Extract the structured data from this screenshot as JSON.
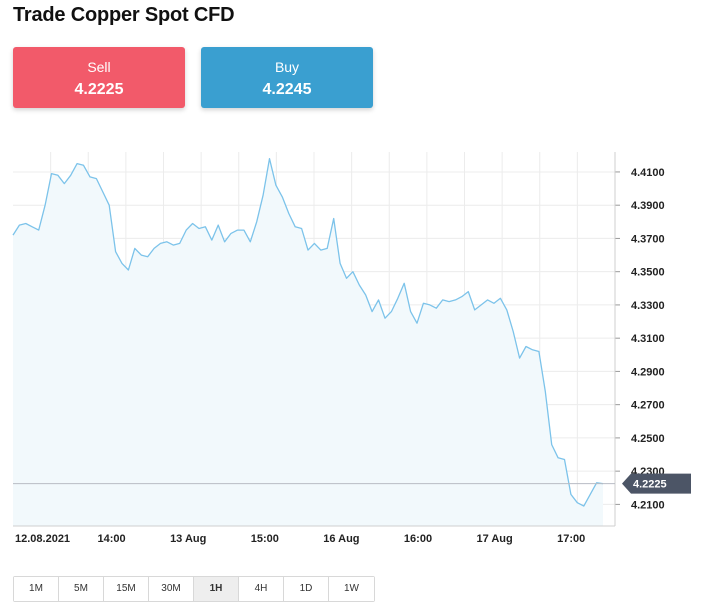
{
  "title": "Trade Copper Spot CFD",
  "sell": {
    "label": "Sell",
    "price": "4.2225",
    "color": "#f25a6a"
  },
  "buy": {
    "label": "Buy",
    "price": "4.2245",
    "color": "#3a9fd0"
  },
  "timeframes": [
    "1M",
    "5M",
    "15M",
    "30M",
    "1H",
    "4H",
    "1D",
    "1W"
  ],
  "active_timeframe": "1H",
  "chart_data": {
    "type": "area",
    "current_price_label": "4.2225",
    "x_tick_labels": [
      "12.08.2021",
      "14:00",
      "13 Aug",
      "15:00",
      "16 Aug",
      "16:00",
      "17 Aug",
      "17:00"
    ],
    "y_tick_labels": [
      "4.4100",
      "4.3900",
      "4.3700",
      "4.3500",
      "4.3300",
      "4.3100",
      "4.2900",
      "4.2700",
      "4.2500",
      "4.2300",
      "4.2100"
    ],
    "ylim": [
      4.197,
      4.422
    ],
    "grid": true,
    "line_color": "#7cc3ea",
    "fill_color": "#f2f9fc",
    "values": [
      4.372,
      4.378,
      4.379,
      4.377,
      4.375,
      4.39,
      4.409,
      4.408,
      4.403,
      4.408,
      4.415,
      4.414,
      4.407,
      4.406,
      4.398,
      4.39,
      4.362,
      4.355,
      4.351,
      4.364,
      4.36,
      4.359,
      4.364,
      4.367,
      4.368,
      4.366,
      4.367,
      4.375,
      4.379,
      4.376,
      4.377,
      4.369,
      4.378,
      4.368,
      4.373,
      4.375,
      4.375,
      4.368,
      4.38,
      4.396,
      4.418,
      4.402,
      4.395,
      4.385,
      4.377,
      4.376,
      4.363,
      4.367,
      4.363,
      4.364,
      4.382,
      4.355,
      4.346,
      4.35,
      4.342,
      4.336,
      4.326,
      4.333,
      4.322,
      4.326,
      4.334,
      4.343,
      4.326,
      4.319,
      4.331,
      4.33,
      4.328,
      4.333,
      4.332,
      4.333,
      4.335,
      4.338,
      4.327,
      4.33,
      4.333,
      4.331,
      4.334,
      4.327,
      4.314,
      4.298,
      4.305,
      4.303,
      4.302,
      4.278,
      4.246,
      4.238,
      4.237,
      4.216,
      4.211,
      4.209,
      4.216,
      4.223,
      4.2225
    ]
  }
}
